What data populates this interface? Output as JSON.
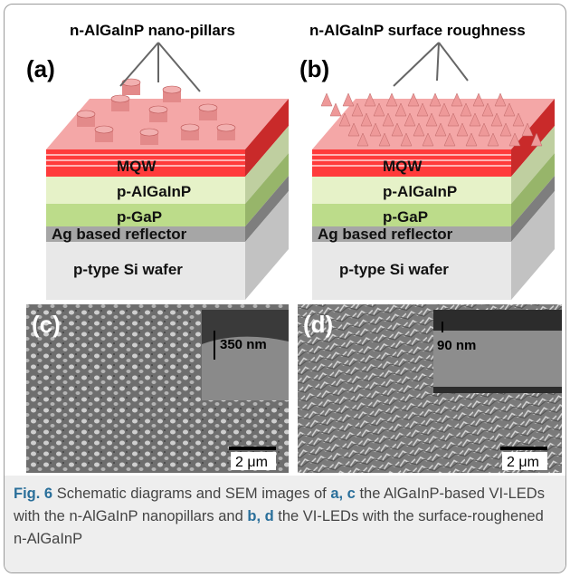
{
  "panels": [
    {
      "label": "(a)",
      "title": "n-AlGaInP nano-pillars",
      "layers": [
        "MQW",
        "p-AlGaInP",
        "p-GaP",
        "Ag based reflector",
        "p-type Si wafer"
      ]
    },
    {
      "label": "(b)",
      "title": "n-AlGaInP surface roughness",
      "layers": [
        "MQW",
        "p-AlGaInP",
        "p-GaP",
        "Ag based reflector",
        "p-type Si wafer"
      ]
    }
  ],
  "sem": [
    {
      "label": "(c)",
      "inset_scale": "350 nm",
      "scale_bar": "2 μm"
    },
    {
      "label": "(d)",
      "inset_scale": "90 nm",
      "scale_bar": "2 μm"
    }
  ],
  "caption": {
    "label": "Fig. 6",
    "parts": [
      "Schematic diagrams and SEM images of ",
      "a, c",
      " the AlGaInP-based VI-LEDs with the n-AlGaInP nanopillars and ",
      "b, d",
      " the VI-LEDs with the surface-roughened n-AlGaInP"
    ]
  }
}
